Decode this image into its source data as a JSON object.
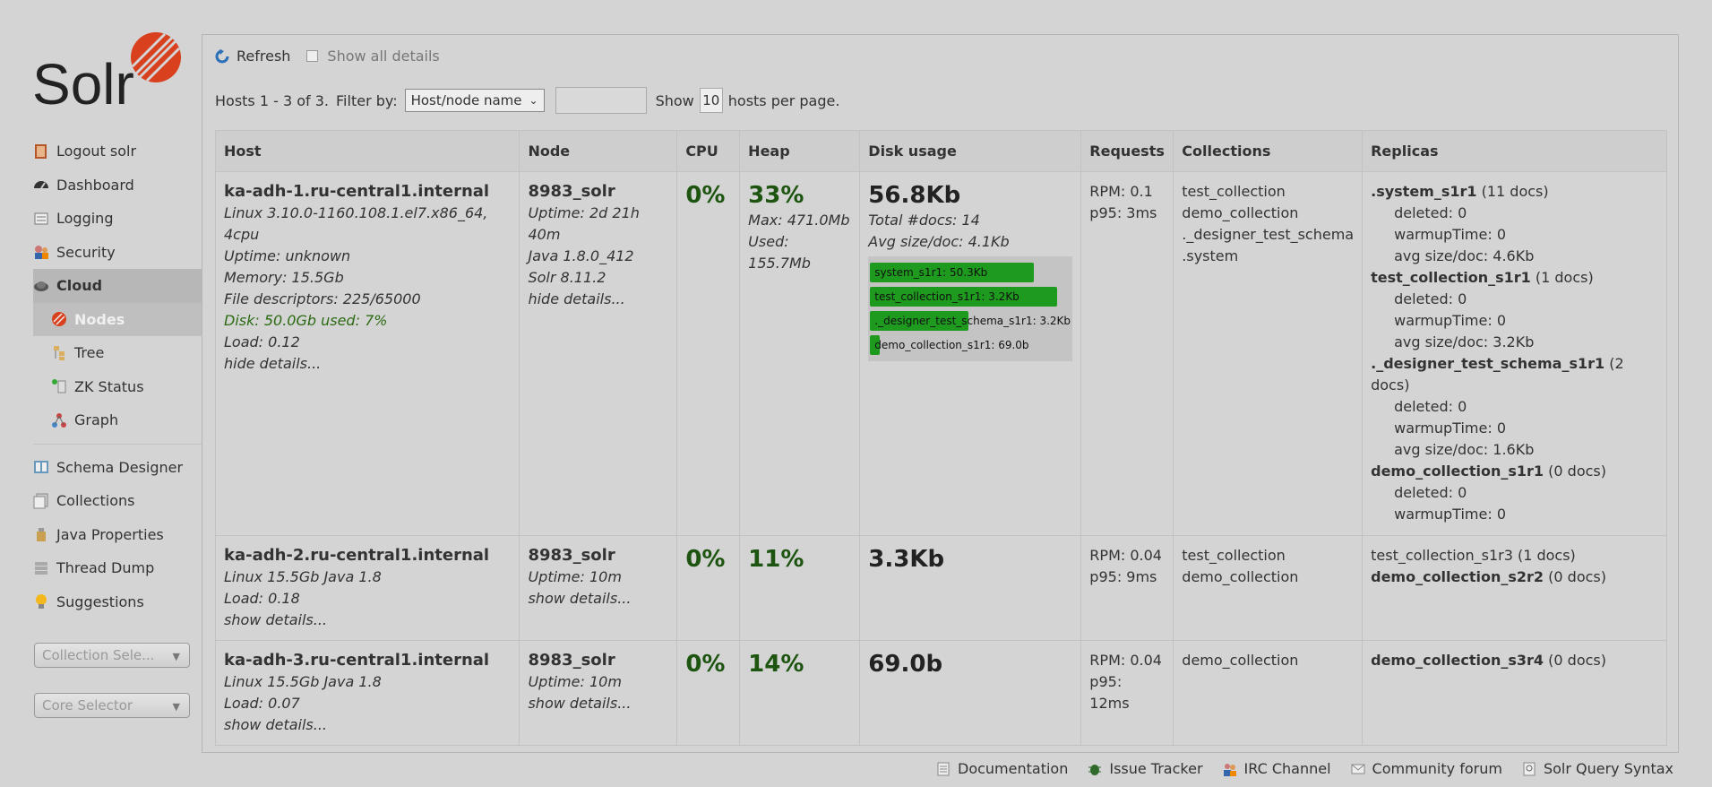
{
  "sidebar": {
    "logo_text": "Solr",
    "items": [
      {
        "label": "Logout solr",
        "icon": "logout-icon"
      },
      {
        "label": "Dashboard",
        "icon": "dashboard-icon"
      },
      {
        "label": "Logging",
        "icon": "logging-icon"
      },
      {
        "label": "Security",
        "icon": "security-icon"
      },
      {
        "label": "Cloud",
        "icon": "cloud-icon"
      }
    ],
    "cloud_sub": [
      {
        "label": "Nodes",
        "icon": "nodes-icon"
      },
      {
        "label": "Tree",
        "icon": "tree-icon"
      },
      {
        "label": "ZK Status",
        "icon": "zk-status-icon"
      },
      {
        "label": "Graph",
        "icon": "graph-icon"
      }
    ],
    "more_items": [
      {
        "label": "Schema Designer",
        "icon": "schema-designer-icon"
      },
      {
        "label": "Collections",
        "icon": "collections-icon"
      },
      {
        "label": "Java Properties",
        "icon": "java-properties-icon"
      },
      {
        "label": "Thread Dump",
        "icon": "thread-dump-icon"
      },
      {
        "label": "Suggestions",
        "icon": "suggestions-icon"
      }
    ],
    "collection_selector": "Collection Sele...",
    "core_selector": "Core Selector"
  },
  "toolbar": {
    "refresh_label": "Refresh",
    "show_all_label": "Show all details"
  },
  "filter": {
    "hosts_text": "Hosts 1 - 3 of 3.",
    "filter_by_label": "Filter by:",
    "filter_option": "Host/node name",
    "show_label": "Show",
    "per_page": "10",
    "per_page_suffix": "hosts per page."
  },
  "table": {
    "headers": [
      "Host",
      "Node",
      "CPU",
      "Heap",
      "Disk usage",
      "Requests",
      "Collections",
      "Replicas"
    ],
    "rows": [
      {
        "host": "ka-adh-1.ru-central1.internal",
        "host_details": [
          "Linux 3.10.0-1160.108.1.el7.x86_64,",
          "4cpu",
          "Uptime: unknown",
          "Memory: 15.5Gb",
          "File descriptors: 225/65000"
        ],
        "disk": "Disk: 50.0Gb used: 7%",
        "load": "Load: 0.12",
        "host_toggle": "hide details...",
        "node": "8983_solr",
        "node_details": [
          "Uptime: 2d 21h",
          "40m",
          "Java 1.8.0_412",
          "Solr 8.11.2"
        ],
        "node_toggle": "hide details...",
        "cpu": "0%",
        "heap": "33%",
        "heap_details": [
          "Max: 471.0Mb",
          "Used:",
          "155.7Mb"
        ],
        "disk_usage": "56.8Kb",
        "disk_details": [
          "Total #docs: 14",
          "Avg size/doc: 4.1Kb"
        ],
        "disk_bars": [
          {
            "label": "system_s1r1:  50.3Kb",
            "fraction": 0.83
          },
          {
            "label": "test_collection_s1r1:  3.2Kb",
            "fraction": 0.95
          },
          {
            "label": "._designer_test_schema_s1r1:  3.2Kb",
            "fraction": 0.5
          },
          {
            "label": "demo_collection_s1r1:  69.0b",
            "fraction": 0.05
          }
        ],
        "requests": [
          "RPM: 0.1",
          "p95: 3ms"
        ],
        "collections": [
          "test_collection",
          "demo_collection",
          "._designer_test_schema",
          ".system"
        ],
        "replicas": [
          {
            "name": ".system_s1r1",
            "docs": "(11 docs)",
            "details": [
              "deleted: 0",
              "warmupTime: 0",
              "avg size/doc: 4.6Kb"
            ]
          },
          {
            "name": "test_collection_s1r1",
            "docs": "(1 docs)",
            "details": [
              "deleted: 0",
              "warmupTime: 0",
              "avg size/doc: 3.2Kb"
            ]
          },
          {
            "name": "._designer_test_schema_s1r1",
            "docs": "(2 docs)",
            "details": [
              "deleted: 0",
              "warmupTime: 0",
              "avg size/doc: 1.6Kb"
            ]
          },
          {
            "name": "demo_collection_s1r1",
            "docs": "(0 docs)",
            "details": [
              "deleted: 0",
              "warmupTime: 0"
            ]
          }
        ]
      },
      {
        "host": "ka-adh-2.ru-central1.internal",
        "host_details": [
          "Linux 15.5Gb Java 1.8"
        ],
        "load": "Load: 0.18",
        "host_toggle": "show details...",
        "node": "8983_solr",
        "node_details": [
          "Uptime: 10m"
        ],
        "node_toggle": "show details...",
        "cpu": "0%",
        "heap": "11%",
        "disk_usage": "3.3Kb",
        "requests": [
          "RPM: 0.04",
          "p95: 9ms"
        ],
        "collections": [
          "test_collection",
          "demo_collection"
        ],
        "replicas": [
          {
            "name": "test_collection_s1r3",
            "docs": "(1 docs)",
            "bold": false
          },
          {
            "name": "demo_collection_s2r2",
            "docs": "(0 docs)",
            "bold": true
          }
        ]
      },
      {
        "host": "ka-adh-3.ru-central1.internal",
        "host_details": [
          "Linux 15.5Gb Java 1.8"
        ],
        "load": "Load: 0.07",
        "host_toggle": "show details...",
        "node": "8983_solr",
        "node_details": [
          "Uptime: 10m"
        ],
        "node_toggle": "show details...",
        "cpu": "0%",
        "heap": "14%",
        "disk_usage": "69.0b",
        "requests": [
          "RPM: 0.04",
          "p95:",
          "12ms"
        ],
        "collections": [
          "demo_collection"
        ],
        "replicas": [
          {
            "name": "demo_collection_s3r4",
            "docs": "(0 docs)",
            "bold": true
          }
        ]
      }
    ]
  },
  "footer": [
    {
      "label": "Documentation",
      "icon": "documentation-icon"
    },
    {
      "label": "Issue Tracker",
      "icon": "issue-tracker-icon"
    },
    {
      "label": "IRC Channel",
      "icon": "irc-channel-icon"
    },
    {
      "label": "Community forum",
      "icon": "community-forum-icon"
    },
    {
      "label": "Solr Query Syntax",
      "icon": "solr-query-syntax-icon"
    }
  ],
  "colors": {
    "accent": "#d9411e",
    "bar_green": "#1e9a1e",
    "value_green": "#1c5410"
  }
}
